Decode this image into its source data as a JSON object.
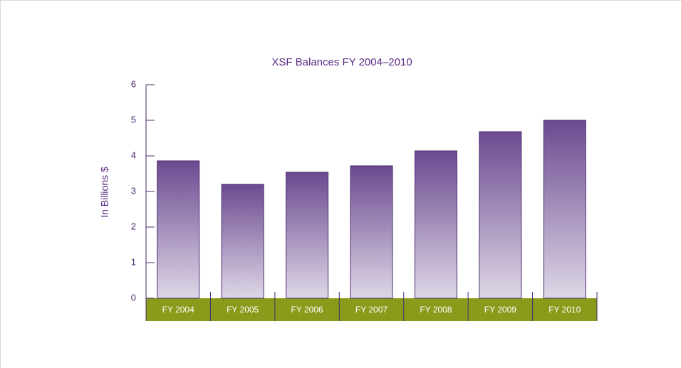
{
  "chart_data": {
    "type": "bar",
    "title": "XSF Balances FY 2004–2010",
    "y_label": "In Billions $",
    "categories": [
      "FY 2004",
      "FY 2005",
      "FY 2006",
      "FY 2007",
      "FY 2008",
      "FY 2009",
      "FY 2010"
    ],
    "values": [
      3.86,
      3.2,
      3.54,
      3.72,
      4.14,
      4.68,
      5.0
    ],
    "color": "#6b4a90",
    "ylim": [
      0,
      6
    ],
    "yticks": [
      0,
      1,
      2,
      3,
      4,
      5,
      6
    ],
    "grid": false
  }
}
